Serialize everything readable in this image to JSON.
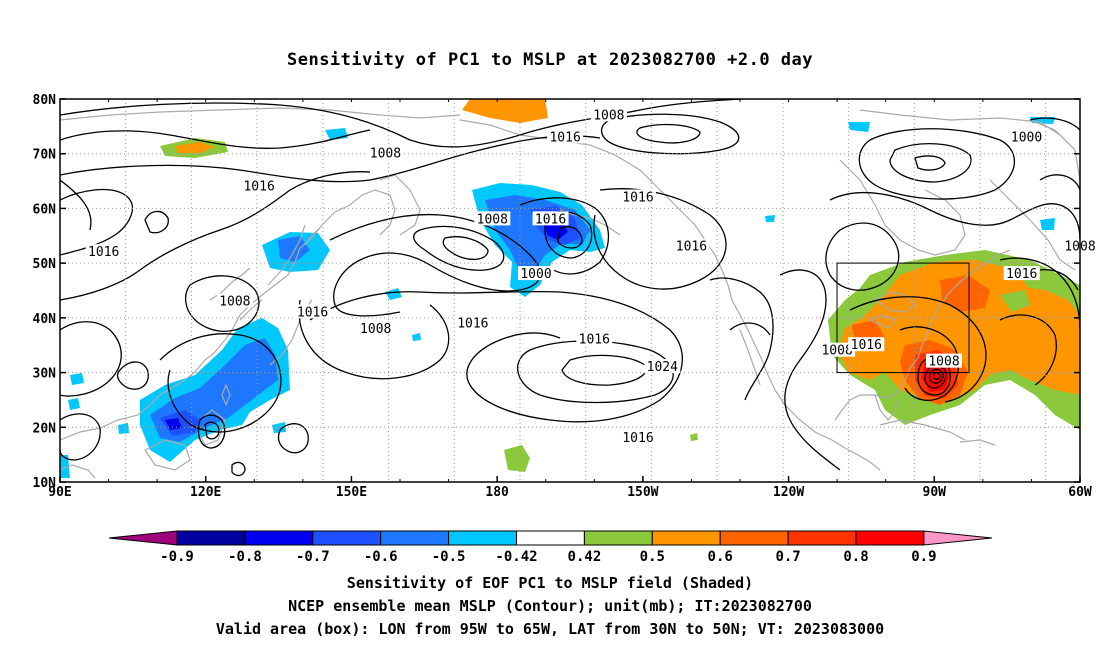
{
  "title": "Sensitivity of PC1 to MSLP at 2023082700 +2.0 day",
  "captions": [
    "Sensitivity of EOF PC1 to MSLP field (Shaded)",
    "NCEP ensemble mean MSLP (Contour); unit(mb); IT:2023082700",
    "Valid area (box): LON from 95W to 65W, LAT from 30N to 50N; VT: 2023083000"
  ],
  "map": {
    "lon_range": [
      90,
      300
    ],
    "lat_range": [
      10,
      80
    ],
    "x_ticks": [
      {
        "lon": 90,
        "label": "90E"
      },
      {
        "lon": 120,
        "label": "120E"
      },
      {
        "lon": 150,
        "label": "150E"
      },
      {
        "lon": 180,
        "label": "180"
      },
      {
        "lon": 210,
        "label": "150W"
      },
      {
        "lon": 240,
        "label": "120W"
      },
      {
        "lon": 270,
        "label": "90W"
      },
      {
        "lon": 300,
        "label": "60W"
      }
    ],
    "y_ticks": [
      {
        "lat": 10,
        "label": "10N"
      },
      {
        "lat": 20,
        "label": "20N"
      },
      {
        "lat": 30,
        "label": "30N"
      },
      {
        "lat": 40,
        "label": "40N"
      },
      {
        "lat": 50,
        "label": "50N"
      },
      {
        "lat": 60,
        "label": "60N"
      },
      {
        "lat": 70,
        "label": "70N"
      },
      {
        "lat": 80,
        "label": "80N"
      }
    ],
    "grid": "dotted",
    "valid_box": {
      "lon_min": 265,
      "lon_max": 295,
      "lat_min": 30,
      "lat_max": 50
    }
  },
  "contour_labels": [
    {
      "text": "1008",
      "lon": 203,
      "lat": 77
    },
    {
      "text": "1016",
      "lon": 194,
      "lat": 73
    },
    {
      "text": "1008",
      "lon": 157,
      "lat": 70
    },
    {
      "text": "1000",
      "lon": 289,
      "lat": 73
    },
    {
      "text": "1016",
      "lon": 131,
      "lat": 64
    },
    {
      "text": "1016",
      "lon": 209,
      "lat": 62
    },
    {
      "text": "1008",
      "lon": 179,
      "lat": 58
    },
    {
      "text": "1016",
      "lon": 191,
      "lat": 58
    },
    {
      "text": "1016",
      "lon": 220,
      "lat": 53
    },
    {
      "text": "1008",
      "lon": 300,
      "lat": 53
    },
    {
      "text": "1016",
      "lon": 99,
      "lat": 52
    },
    {
      "text": "1000",
      "lon": 188,
      "lat": 48
    },
    {
      "text": "1016",
      "lon": 288,
      "lat": 48
    },
    {
      "text": "1008",
      "lon": 126,
      "lat": 43
    },
    {
      "text": "1016",
      "lon": 142,
      "lat": 41
    },
    {
      "text": "1008",
      "lon": 155,
      "lat": 38
    },
    {
      "text": "1016",
      "lon": 175,
      "lat": 39
    },
    {
      "text": "1016",
      "lon": 200,
      "lat": 36
    },
    {
      "text": "1008",
      "lon": 250,
      "lat": 34
    },
    {
      "text": "1016",
      "lon": 256,
      "lat": 35
    },
    {
      "text": "1008",
      "lon": 272,
      "lat": 32
    },
    {
      "text": "1024",
      "lon": 214,
      "lat": 31
    },
    {
      "text": "1016",
      "lon": 209,
      "lat": 18
    }
  ],
  "colorbar": {
    "labels": [
      "-0.9",
      "-0.8",
      "-0.7",
      "-0.6",
      "-0.5",
      "-0.42",
      "0.42",
      "0.5",
      "0.6",
      "0.7",
      "0.8",
      "0.9"
    ],
    "colors": [
      "#a0007a",
      "#0000a0",
      "#0000f0",
      "#1e50ff",
      "#1e78ff",
      "#00c8ff",
      "#ffffff",
      "#8cc83c",
      "#ff9600",
      "#ff6400",
      "#ff3200",
      "#ff0000",
      "#ff96c8"
    ]
  }
}
